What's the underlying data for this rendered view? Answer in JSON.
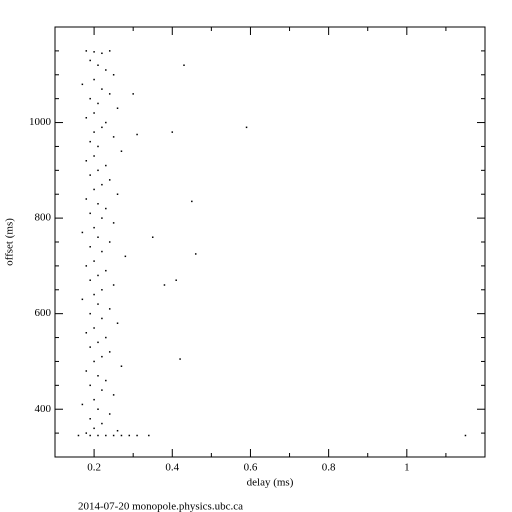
{
  "chart_data": {
    "type": "scatter",
    "x_label": "delay (ms)",
    "y_label": "offset (ms)",
    "footer": "2014-07-20  monopole.physics.ubc.ca",
    "color": "#000000",
    "xlim": [
      0.1,
      1.2
    ],
    "ylim": [
      300,
      1200
    ],
    "xticks": [
      0.2,
      0.4,
      0.6,
      0.8,
      1
    ],
    "yticks": [
      400,
      600,
      800,
      1000
    ],
    "xminorticks": [
      0.1,
      0.3,
      0.5,
      0.7,
      0.9,
      1.1
    ],
    "yminorticks": [
      350,
      450,
      500,
      550,
      650,
      700,
      750,
      850,
      900,
      950,
      1050,
      1100,
      1150
    ],
    "x": [
      0.18,
      0.2,
      0.22,
      0.24,
      0.19,
      0.21,
      0.23,
      0.25,
      0.2,
      0.17,
      0.22,
      0.24,
      0.19,
      0.21,
      0.26,
      0.2,
      0.18,
      0.23,
      0.22,
      0.2,
      0.25,
      0.19,
      0.21,
      0.27,
      0.2,
      0.18,
      0.23,
      0.21,
      0.19,
      0.24,
      0.22,
      0.2,
      0.26,
      0.18,
      0.21,
      0.23,
      0.19,
      0.22,
      0.25,
      0.2,
      0.17,
      0.21,
      0.24,
      0.19,
      0.22,
      0.28,
      0.2,
      0.18,
      0.23,
      0.21,
      0.19,
      0.25,
      0.22,
      0.2,
      0.17,
      0.21,
      0.24,
      0.19,
      0.22,
      0.26,
      0.2,
      0.18,
      0.23,
      0.21,
      0.19,
      0.24,
      0.22,
      0.2,
      0.27,
      0.18,
      0.21,
      0.23,
      0.19,
      0.22,
      0.25,
      0.2,
      0.17,
      0.21,
      0.24,
      0.19,
      0.22,
      0.2,
      0.26,
      0.18,
      0.16,
      0.19,
      0.21,
      0.23,
      0.25,
      0.27,
      0.29,
      0.31,
      0.59,
      1.15,
      0.43,
      0.45,
      0.46,
      0.41,
      0.38,
      0.35,
      0.31,
      0.4,
      0.34,
      0.42,
      0.3
    ],
    "y": [
      1150,
      1148,
      1145,
      1150,
      1130,
      1120,
      1110,
      1100,
      1090,
      1080,
      1070,
      1060,
      1050,
      1040,
      1030,
      1020,
      1010,
      1000,
      990,
      980,
      970,
      960,
      950,
      940,
      930,
      920,
      910,
      900,
      890,
      880,
      870,
      860,
      850,
      840,
      830,
      820,
      810,
      800,
      790,
      780,
      770,
      760,
      750,
      740,
      730,
      720,
      710,
      700,
      690,
      680,
      670,
      660,
      650,
      640,
      630,
      620,
      610,
      600,
      590,
      580,
      570,
      560,
      550,
      540,
      530,
      520,
      510,
      500,
      490,
      480,
      470,
      460,
      450,
      440,
      430,
      420,
      410,
      400,
      390,
      380,
      370,
      360,
      355,
      350,
      345,
      345,
      345,
      345,
      345,
      345,
      345,
      345,
      990,
      345,
      1120,
      835,
      725,
      670,
      660,
      760,
      975,
      980,
      345,
      505,
      1060
    ]
  }
}
